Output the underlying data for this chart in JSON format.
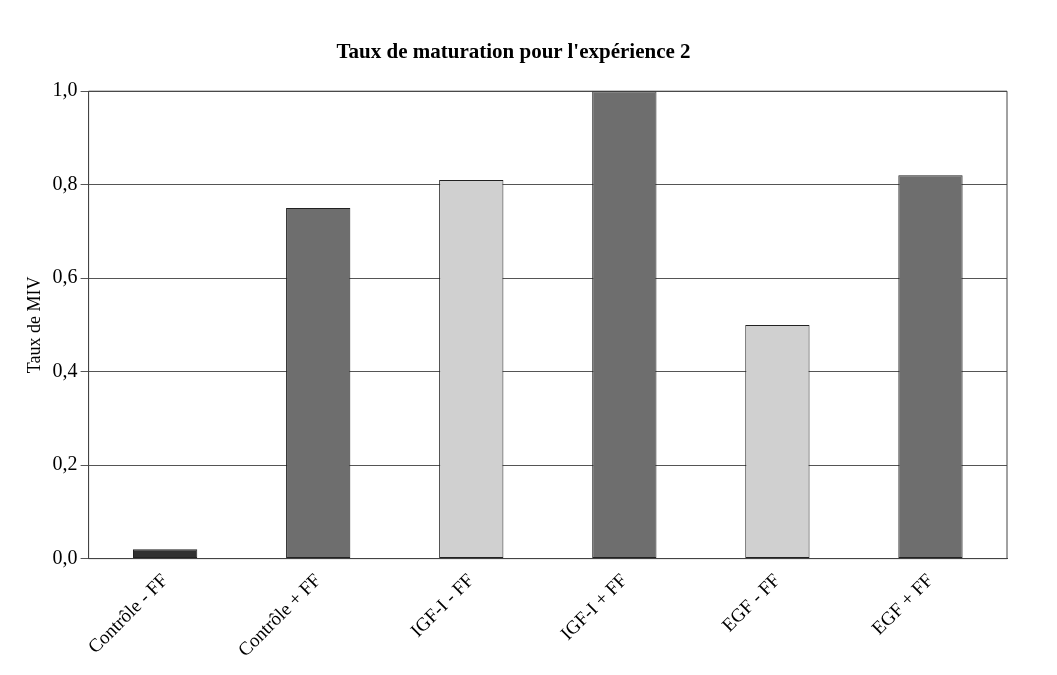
{
  "chart_data": {
    "type": "bar",
    "title": "Taux de maturation pour l'expérience 2",
    "ylabel": "Taux de MIV",
    "categories": [
      "Contrôle - FF",
      "Contrôle + FF",
      "IGF-I - FF",
      "IGF-I + FF",
      "EGF - FF",
      "EGF + FF"
    ],
    "values": [
      0.02,
      0.75,
      0.81,
      1.0,
      0.5,
      0.82
    ],
    "colors": [
      "#303030",
      "#6e6e6e",
      "#d0d0d0",
      "#6e6e6e",
      "#d0d0d0",
      "#6e6e6e"
    ],
    "ylim": [
      0,
      1.0
    ],
    "yticks": [
      {
        "value": 0,
        "label": "0,0"
      },
      {
        "value": 0.2,
        "label": "0,2"
      },
      {
        "value": 0.4,
        "label": "0,4"
      },
      {
        "value": 0.6,
        "label": "0,6"
      },
      {
        "value": 0.8,
        "label": "0,8"
      },
      {
        "value": 1.0,
        "label": "1,0"
      }
    ],
    "grid": "y",
    "legend": false
  }
}
